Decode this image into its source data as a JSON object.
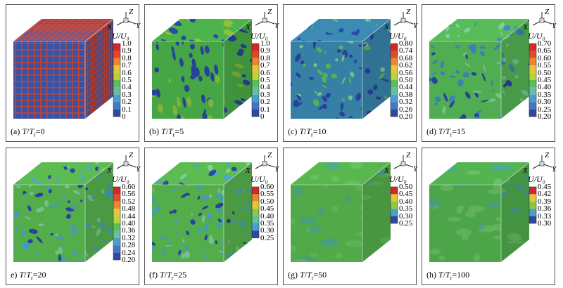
{
  "quantity_label": "U/U₀",
  "axes": {
    "z": "Z",
    "x": "X",
    "y": "Y"
  },
  "colorbar_colors": [
    "#2d4aa0",
    "#3f78c8",
    "#4aa0cc",
    "#63c0a4",
    "#5cbe54",
    "#8cc840",
    "#bcd23c",
    "#e0c83a",
    "#e8882e",
    "#e04a26",
    "#d6252b"
  ],
  "panels": [
    {
      "caption_prefix": "(a) ",
      "caption_var": "T",
      "caption_sep": "/",
      "caption_var2": "T",
      "caption_sub": "r",
      "caption_value": "=0",
      "ticks": [
        "1.0",
        "0.9",
        "0.8",
        "0.7",
        "0.6",
        "0.5",
        "0.4",
        "0.3",
        "0.2",
        "0.1",
        "0"
      ],
      "field": "grid",
      "base": "#3a5bb8",
      "accent": "#d04a3a",
      "extra": "#6a8ad0"
    },
    {
      "caption_prefix": "(b) ",
      "caption_var": "T",
      "caption_sep": "/",
      "caption_var2": "T",
      "caption_sub": "r",
      "caption_value": "=5",
      "ticks": [
        "1.0",
        "0.9",
        "0.8",
        "0.7",
        "0.6",
        "0.5",
        "0.4",
        "0.3",
        "0.2",
        "0.1",
        "0"
      ],
      "field": "stripes",
      "base": "#4cb44a",
      "accent": "#2c48a8",
      "extra": "#8cc23e"
    },
    {
      "caption_prefix": "(c) ",
      "caption_var": "T",
      "caption_sep": "/",
      "caption_var2": "T",
      "caption_sub": "r",
      "caption_value": "=10",
      "ticks": [
        "0.80",
        "0.74",
        "0.68",
        "0.62",
        "0.56",
        "0.50",
        "0.44",
        "0.38",
        "0.32",
        "0.26",
        "0.20"
      ],
      "field": "noise",
      "base": "#3b8bb4",
      "accent": "#2c48a8",
      "extra": "#5fbf5a"
    },
    {
      "caption_prefix": "(d) ",
      "caption_var": "T",
      "caption_sep": "/",
      "caption_var2": "T",
      "caption_sub": "r",
      "caption_value": "=15",
      "ticks": [
        "0.70",
        "0.65",
        "0.60",
        "0.55",
        "0.50",
        "0.45",
        "0.40",
        "0.35",
        "0.30",
        "0.25",
        "0.20"
      ],
      "field": "noise",
      "base": "#58bc58",
      "accent": "#3f8cc6",
      "extra": "#2c48a8"
    },
    {
      "caption_prefix": "e) ",
      "caption_var": "T",
      "caption_sep": "/",
      "caption_var2": "T",
      "caption_sub": "r",
      "caption_value": "=20",
      "ticks": [
        "0.60",
        "0.56",
        "0.52",
        "0.48",
        "0.44",
        "0.40",
        "0.36",
        "0.32",
        "0.28",
        "0.24",
        "0.20"
      ],
      "field": "noise",
      "base": "#5cbc52",
      "accent": "#4aa8c8",
      "extra": "#2c48a8"
    },
    {
      "caption_prefix": "(f) ",
      "caption_var": "T",
      "caption_sep": "/",
      "caption_var2": "T",
      "caption_sub": "r",
      "caption_value": "=25",
      "ticks": [
        "0.60",
        "0.55",
        "0.50",
        "0.45",
        "0.40",
        "0.35",
        "0.30",
        "0.25"
      ],
      "field": "noise",
      "base": "#5cbc52",
      "accent": "#4aa8c8",
      "extra": "#2c48a8"
    },
    {
      "caption_prefix": "(g) ",
      "caption_var": "T",
      "caption_sep": "/",
      "caption_var2": "T",
      "caption_sub": "r",
      "caption_value": "=50",
      "ticks": [
        "0.50",
        "0.45",
        "0.40",
        "0.35",
        "0.30",
        "0.25"
      ],
      "field": "smooth",
      "base": "#58b84e",
      "accent": "#6cc46a",
      "extra": "#4aa8a0"
    },
    {
      "caption_prefix": "(h) ",
      "caption_var": "T",
      "caption_sep": "/",
      "caption_var2": "T",
      "caption_sub": "r",
      "caption_value": "=100",
      "ticks": [
        "0.45",
        "0.42",
        "0.39",
        "0.36",
        "0.33",
        "0.30"
      ],
      "field": "smooth",
      "base": "#54b450",
      "accent": "#72c66a",
      "extra": "#4aa8a0"
    }
  ]
}
